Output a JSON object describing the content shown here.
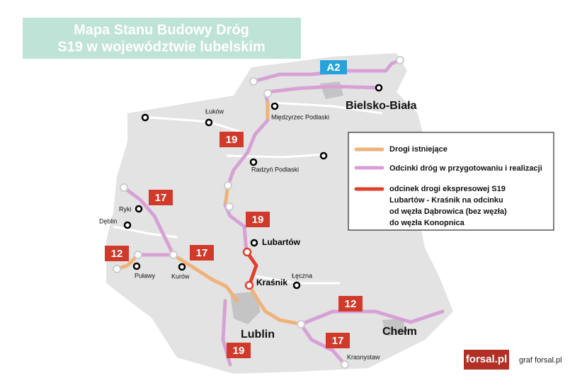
{
  "header": {
    "title": [
      "Mapa Stanu Budowy Dróg",
      "S19 w województwie lubelskim"
    ]
  },
  "badges": [
    "A2",
    "19",
    "19",
    "19",
    "17",
    "17",
    "17",
    "12",
    "12"
  ],
  "places": [
    "Bielsko-Biała",
    "Łuków",
    "Międzyrzec Podlaski",
    "Radzyń Podlaski",
    "Ryki",
    "Dęblin",
    "Puławy",
    "Kurów",
    "Lubartów",
    "Łęczna",
    "Kraśnik",
    "Lublin",
    "Chełm",
    "Krasnystaw"
  ],
  "legend": {
    "items": [
      "Drogi istniejące",
      "Odcinki dróg w przygotowaniu i realizacji"
    ],
    "red_item": [
      "odcinek drogi ekspresowej S19",
      "Lubartów - Kraśnik na odcinku",
      "od węzła Dąbrowica (bez węzła)",
      "do węzła Konopnica"
    ]
  },
  "footer": {
    "logo": "forsal.pl",
    "credit": "graf forsal.pl"
  }
}
